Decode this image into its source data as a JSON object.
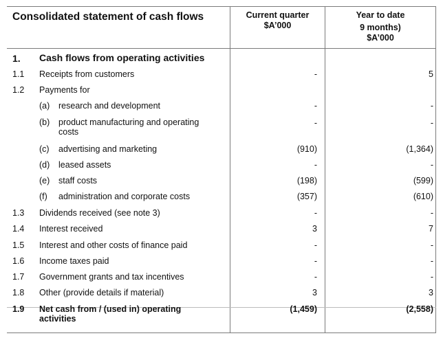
{
  "header": {
    "title": "Consolidated statement of cash flows",
    "col1_line1": "Current quarter",
    "col1_line2": "$A’000",
    "col2_line1": "Year to date",
    "col2_line2": "9 months)",
    "col2_line3": "$A’000"
  },
  "section": {
    "num": "1.",
    "label": "Cash flows from operating activities"
  },
  "rows": [
    {
      "num": "1.1",
      "label": "Receipts from customers",
      "cq": "-",
      "ytd": "5"
    },
    {
      "num": "1.2",
      "label": "Payments for",
      "cq": "",
      "ytd": ""
    },
    {
      "letter": "(a)",
      "label": "research and development",
      "cq": "-",
      "ytd": "-"
    },
    {
      "letter": "(b)",
      "label": "product manufacturing and operating costs",
      "cq": "-",
      "ytd": "-"
    },
    {
      "letter": "(c)",
      "label": "advertising and marketing",
      "cq": "(910)",
      "ytd": "(1,364)"
    },
    {
      "letter": "(d)",
      "label": "leased assets",
      "cq": "-",
      "ytd": "-"
    },
    {
      "letter": "(e)",
      "label": "staff costs",
      "cq": "(198)",
      "ytd": "(599)"
    },
    {
      "letter": "(f)",
      "label": "administration and corporate costs",
      "cq": "(357)",
      "ytd": "(610)"
    },
    {
      "num": "1.3",
      "label": "Dividends received (see note 3)",
      "cq": "-",
      "ytd": "-"
    },
    {
      "num": "1.4",
      "label": "Interest received",
      "cq": "3",
      "ytd": "7"
    },
    {
      "num": "1.5",
      "label": "Interest and other costs of finance paid",
      "cq": "-",
      "ytd": "-"
    },
    {
      "num": "1.6",
      "label": "Income taxes paid",
      "cq": "-",
      "ytd": "-"
    },
    {
      "num": "1.7",
      "label": "Government grants and tax incentives",
      "cq": "-",
      "ytd": "-"
    },
    {
      "num": "1.8",
      "label": "Other (provide details if material)",
      "cq": "3",
      "ytd": "3"
    },
    {
      "num": "1.9",
      "label": "Net cash from / (used in) operating activities",
      "cq": "(1,459)",
      "ytd": "(2,558)"
    }
  ]
}
